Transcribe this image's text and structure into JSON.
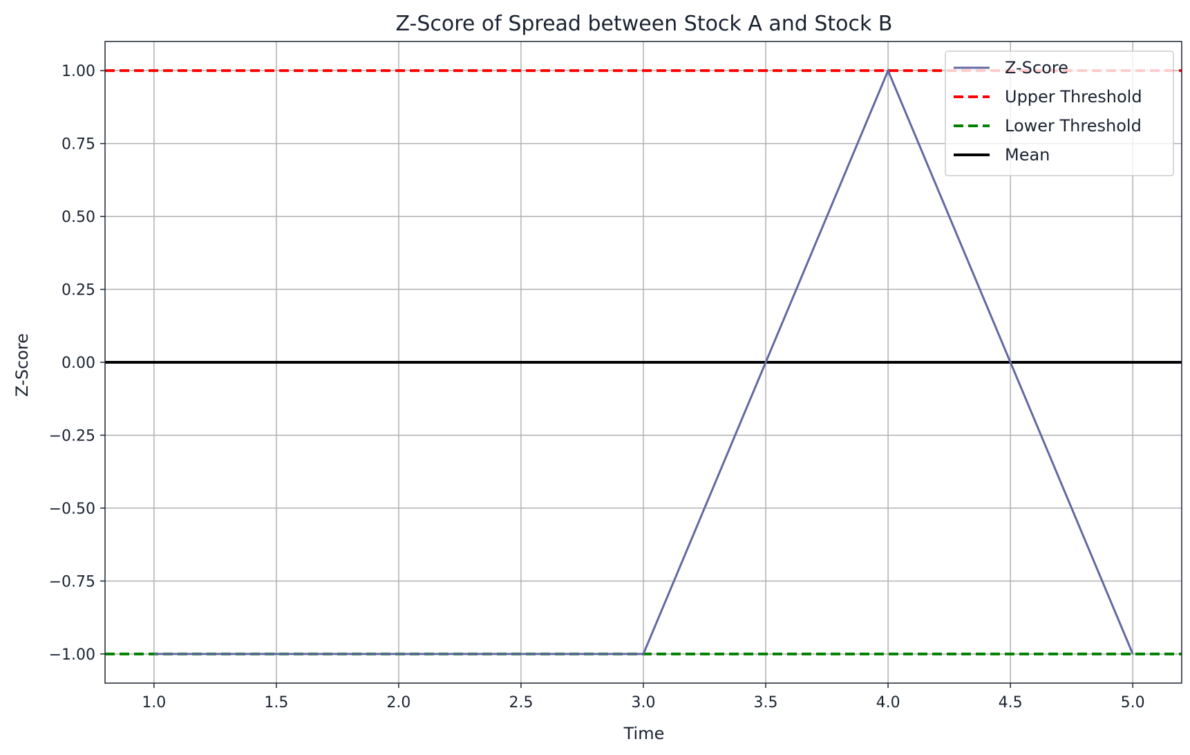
{
  "chart_data": {
    "type": "line",
    "title": "Z-Score of Spread between Stock A and Stock B",
    "xlabel": "Time",
    "ylabel": "Z-Score",
    "xlim": [
      0.8,
      5.2
    ],
    "ylim": [
      -1.1,
      1.1
    ],
    "xticks": [
      1.0,
      1.5,
      2.0,
      2.5,
      3.0,
      3.5,
      4.0,
      4.5,
      5.0
    ],
    "xtick_labels": [
      "1.0",
      "1.5",
      "2.0",
      "2.5",
      "3.0",
      "3.5",
      "4.0",
      "4.5",
      "5.0"
    ],
    "yticks": [
      1.0,
      0.75,
      0.5,
      0.25,
      0.0,
      -0.25,
      -0.5,
      -0.75,
      -1.0
    ],
    "ytick_labels": [
      "1.00",
      "0.75",
      "0.50",
      "0.25",
      "0.00",
      "−0.25",
      "−0.50",
      "−0.75",
      "−1.00"
    ],
    "grid": true,
    "legend_position": "top-right",
    "series": [
      {
        "name": "Z-Score",
        "x": [
          1,
          2,
          3,
          4,
          5
        ],
        "y": [
          -1,
          -1,
          -1,
          1,
          -1
        ],
        "color": "#6368a0",
        "style": "solid"
      }
    ],
    "hlines": [
      {
        "name": "Upper Threshold",
        "y": 1.0,
        "color": "#ff0000",
        "style": "dashed"
      },
      {
        "name": "Lower Threshold",
        "y": -1.0,
        "color": "#008000",
        "style": "dashed"
      },
      {
        "name": "Mean",
        "y": 0.0,
        "color": "#000000",
        "style": "solid"
      }
    ],
    "legend": [
      "Z-Score",
      "Upper Threshold",
      "Lower Threshold",
      "Mean"
    ]
  }
}
